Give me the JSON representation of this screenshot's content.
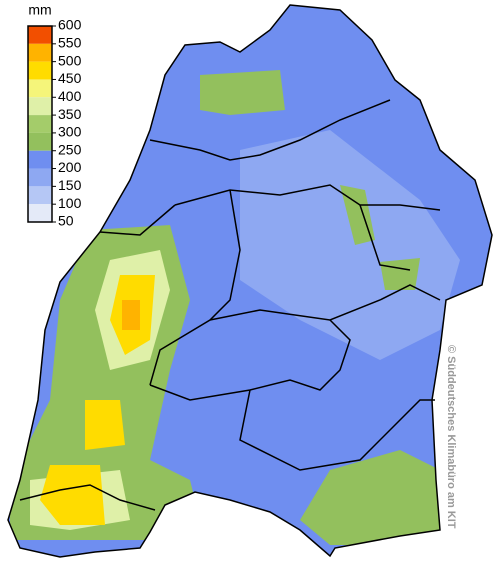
{
  "legend": {
    "unit": "mm",
    "ticks": [
      600,
      550,
      500,
      450,
      400,
      350,
      300,
      250,
      200,
      150,
      100,
      50
    ],
    "colors": [
      "#f24f00",
      "#ffb300",
      "#ffdc00",
      "#f5f57a",
      "#dff0a8",
      "#a4cc6a",
      "#93c05d",
      "#6f8ef0",
      "#8ea8f2",
      "#b5c7f5",
      "#e4eaf8"
    ]
  },
  "copyright": "© Süddeutsches Klimabüro am KIT"
}
